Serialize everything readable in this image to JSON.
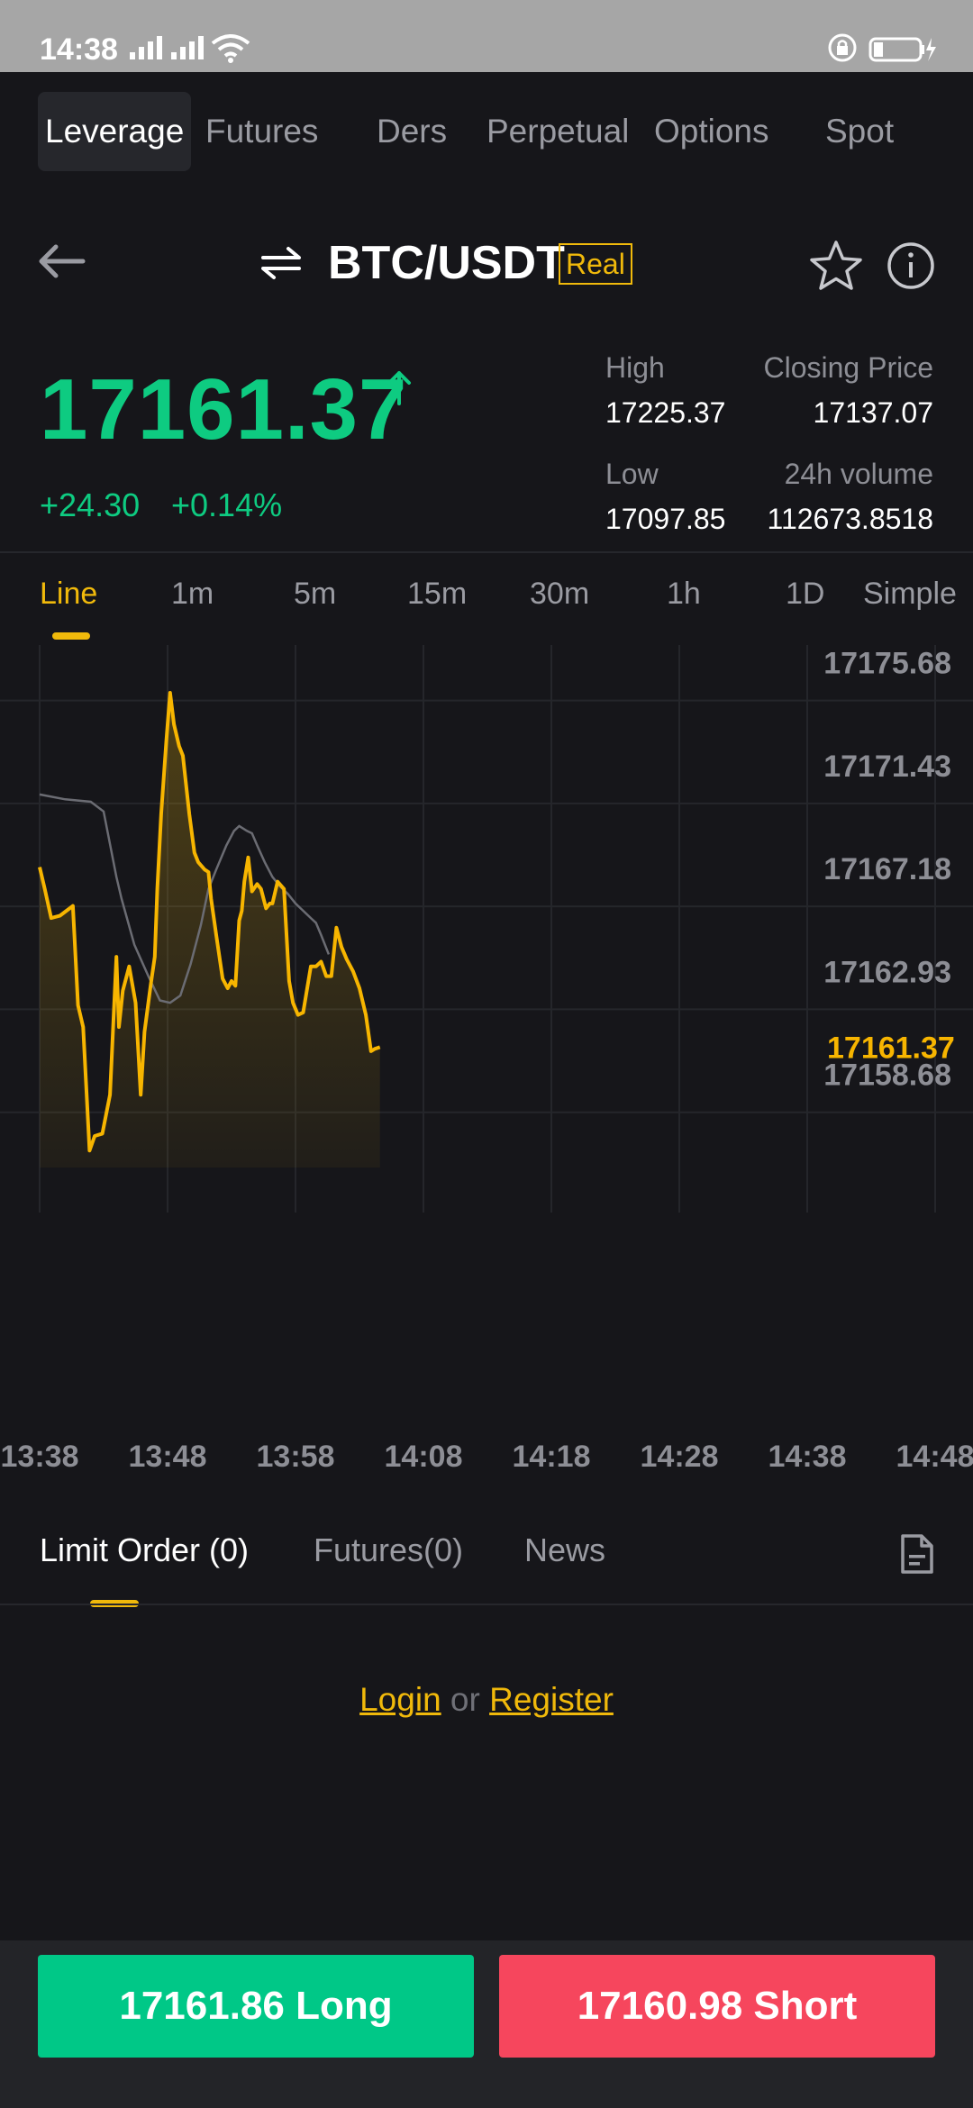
{
  "status": {
    "time": "14:38"
  },
  "tabs": [
    "Leverage",
    "Futures",
    "Ders",
    "Perpetual",
    "Options",
    "Spot"
  ],
  "header": {
    "pair": "BTC/USDT",
    "badge": "Real"
  },
  "ticker": {
    "price": "17161.37",
    "change_abs": "+24.30",
    "change_pct": "+0.14%",
    "high_label": "High",
    "high": "17225.37",
    "close_label": "Closing Price",
    "close": "17137.07",
    "low_label": "Low",
    "low": "17097.85",
    "vol_label": "24h volume",
    "vol": "112673.8518"
  },
  "intervals": [
    "Line",
    "1m",
    "5m",
    "15m",
    "30m",
    "1h",
    "1D",
    "Simple"
  ],
  "chart_data": {
    "type": "line",
    "x_ticks": [
      "13:38",
      "13:48",
      "13:58",
      "14:08",
      "14:18",
      "14:28",
      "14:38",
      "14:48"
    ],
    "y_ticks": [
      "17175.68",
      "17171.43",
      "17167.18",
      "17162.93",
      "17158.68"
    ],
    "last_price_label": "17161.37",
    "ylim": [
      17156.4,
      17177.6
    ],
    "series": [
      {
        "x": [
          0,
          0.4,
          0.9,
          1.6,
          2.6,
          3.0,
          3.4,
          3.9,
          4.3,
          4.9,
          5.5,
          6.0,
          6.2,
          6.5,
          7.0,
          7.5,
          7.9,
          8.2,
          8.7,
          9.0,
          9.2,
          9.5,
          9.9,
          10.2,
          10.5,
          10.9,
          11.2,
          11.7,
          12.1,
          12.4,
          12.9,
          13.2,
          13.4,
          13.8,
          14.3,
          14.7,
          15.0,
          15.3,
          15.6,
          15.8,
          16.0,
          16.3,
          16.6,
          17.0,
          17.3,
          17.7,
          18.0,
          18.2,
          18.6,
          19.1,
          19.5,
          19.8,
          20.2,
          20.6,
          21.2,
          21.6,
          22.0,
          22.4,
          22.8,
          23.2,
          23.6,
          24.0,
          24.5,
          25.0,
          25.5,
          25.9,
          26.2,
          26.6
        ],
        "values": [
          17168.8,
          17167.9,
          17166.7,
          17166.8,
          17167.2,
          17163.1,
          17162.2,
          17157.1,
          17157.7,
          17157.8,
          17159.4,
          17165.1,
          17162.2,
          17163.7,
          17164.7,
          17163.2,
          17159.4,
          17162.0,
          17164.0,
          17165.1,
          17167.9,
          17171.0,
          17174.0,
          17176.0,
          17174.7,
          17173.8,
          17173.4,
          17171.0,
          17169.4,
          17169.0,
          17168.7,
          17168.6,
          17167.5,
          17166.0,
          17164.2,
          17163.8,
          17164.1,
          17163.9,
          17166.6,
          17167.0,
          17168.2,
          17169.2,
          17167.8,
          17168.1,
          17167.9,
          17167.1,
          17167.3,
          17167.3,
          17168.2,
          17167.9,
          17164.1,
          17163.2,
          17162.7,
          17162.8,
          17164.7,
          17164.7,
          17164.9,
          17164.3,
          17164.3,
          17166.3,
          17165.5,
          17165.0,
          17164.5,
          17163.8,
          17162.7,
          17161.2,
          17161.3,
          17161.37
        ]
      },
      {
        "x": [
          0,
          2,
          4,
          5,
          6,
          6.4,
          7.4,
          8.5,
          9.4,
          10.2,
          11.0,
          11.8,
          12.6,
          13.2,
          13.8,
          14.6,
          15.2,
          15.6,
          16.2,
          16.6,
          17.0,
          17.6,
          18.2,
          18.8,
          19.4,
          20.0,
          20.6,
          21.2,
          21.6,
          22.0,
          22.6
        ],
        "values": [
          17171.8,
          17171.6,
          17171.5,
          17171.1,
          17168.4,
          17167.5,
          17165.6,
          17164.3,
          17163.3,
          17163.2,
          17163.5,
          17164.8,
          17166.4,
          17167.9,
          17168.7,
          17169.7,
          17170.3,
          17170.5,
          17170.3,
          17170.2,
          17169.7,
          17169.0,
          17168.4,
          17168.0,
          17167.7,
          17167.3,
          17167.0,
          17166.7,
          17166.5,
          17166.0,
          17165.2
        ]
      }
    ]
  },
  "orders": {
    "tabs": [
      "Limit Order (0)",
      "Futures(0)",
      "News"
    ],
    "login": "Login",
    "or": "or",
    "register": "Register"
  },
  "actions": {
    "long": "17161.86 Long",
    "short": "17160.98 Short"
  },
  "colors": {
    "up": "#0ecb81",
    "accent": "#f0b90b",
    "long": "#00c887",
    "short": "#f6465d",
    "bg": "#16161a"
  }
}
